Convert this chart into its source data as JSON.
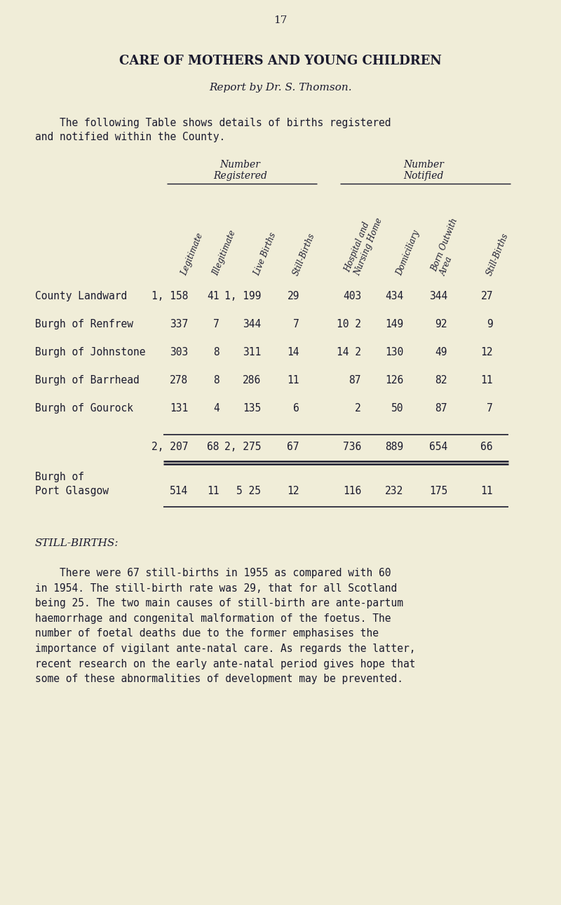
{
  "bg_color": "#f0edd8",
  "text_color": "#1a1a2e",
  "page_number": "17",
  "title": "CARE OF MOTHERS AND YOUNG CHILDREN",
  "subtitle": "Report by Dr. S. Thomson.",
  "intro_line1": "    The following Table shows details of births registered",
  "intro_line2": "and notified within the County.",
  "num_registered_label1": "Number",
  "num_registered_label2": "Registered",
  "num_notified_label1": "Number",
  "num_notified_label2": "Notified",
  "col_headers": [
    "Legitimate",
    "Illegitimate",
    "Live Births",
    "Still-Births",
    "Hospital and\nNursing Home",
    "Domiciliary",
    "Born Outwith\nArea",
    "Still-Births"
  ],
  "rows": [
    {
      "label": "County Landward",
      "values": [
        "1, 158",
        "41",
        "1, 199",
        "29",
        "403",
        "434",
        "344",
        "27"
      ]
    },
    {
      "label": "Burgh of Renfrew",
      "values": [
        "337",
        "7",
        "344",
        "7",
        "10 2",
        "149",
        "92",
        "9"
      ]
    },
    {
      "label": "Burgh of Johnstone",
      "values": [
        "303",
        "8",
        "311",
        "14",
        "14 2",
        "130",
        "49",
        "12"
      ]
    },
    {
      "label": "Burgh of Barrhead",
      "values": [
        "278",
        "8",
        "286",
        "11",
        "87",
        "126",
        "82",
        "11"
      ]
    },
    {
      "label": "Burgh of Gourock",
      "values": [
        "131",
        "4",
        "135",
        "6",
        "2",
        "50",
        "87",
        "7"
      ]
    }
  ],
  "total_row": [
    "2, 207",
    "68",
    "2, 275",
    "67",
    "736",
    "889",
    "654",
    "66"
  ],
  "port_glasgow_label": [
    "Burgh of",
    "Port Glasgow"
  ],
  "port_glasgow_row": [
    "514",
    "11",
    "5 25",
    "12",
    "116",
    "232",
    "175",
    "11"
  ],
  "still_births_heading": "STILL-BIRTHS:",
  "still_births_para": "    There were 67 still-births in 1955 as compared with 60\nin 1954. The still-birth rate was 29, that for all Scotland\nbeing 25. The two main causes of still-birth are ante-partum\nhaemorrhage and congenital malformation of the foetus. The\nnumber of foetal deaths due to the former emphasises the\nimportance of vigilant ante-natal care. As regards the latter,\nrecent research on the early ante-natal period gives hope that\nsome of these abnormalities of development may be prevented."
}
